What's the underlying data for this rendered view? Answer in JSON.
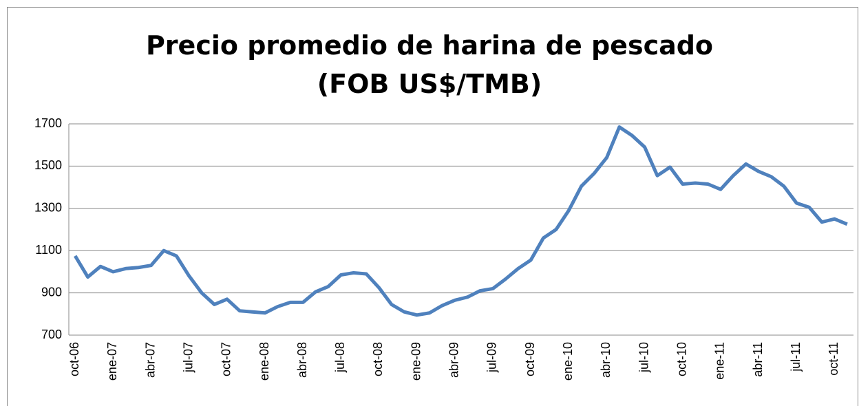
{
  "chart_data": {
    "type": "line",
    "title": "Precio promedio de harina de pescado (FOB US$/TMB)",
    "categories": [
      "oct-06",
      null,
      null,
      "ene-07",
      null,
      null,
      "abr-07",
      null,
      null,
      "jul-07",
      null,
      null,
      "oct-07",
      null,
      null,
      "ene-08",
      null,
      null,
      "abr-08",
      null,
      null,
      "jul-08",
      null,
      null,
      "oct-08",
      null,
      null,
      "ene-09",
      null,
      null,
      "abr-09",
      null,
      null,
      "jul-09",
      null,
      null,
      "oct-09",
      null,
      null,
      "ene-10",
      null,
      null,
      "abr-10",
      null,
      null,
      "jul-10",
      null,
      null,
      "oct-10",
      null,
      null,
      "ene-11",
      null,
      null,
      "abr-11",
      null,
      null,
      "jul-11",
      null,
      null,
      "oct-11",
      null
    ],
    "series": [
      {
        "name": "Precio",
        "color": "#4f81bd",
        "values": [
          1075,
          975,
          1025,
          1000,
          1015,
          1020,
          1030,
          1100,
          1075,
          980,
          900,
          845,
          870,
          815,
          810,
          805,
          835,
          855,
          855,
          905,
          930,
          985,
          995,
          990,
          925,
          845,
          810,
          795,
          805,
          840,
          865,
          880,
          910,
          920,
          965,
          1015,
          1055,
          1160,
          1200,
          1290,
          1405,
          1465,
          1540,
          1685,
          1645,
          1590,
          1455,
          1495,
          1415,
          1420,
          1415,
          1390,
          1455,
          1510,
          1475,
          1450,
          1405,
          1325,
          1305,
          1235,
          1250,
          1225
        ]
      }
    ],
    "ylim": [
      700,
      1700
    ],
    "yticks": [
      700,
      900,
      1100,
      1300,
      1500,
      1700
    ],
    "grid": true
  }
}
